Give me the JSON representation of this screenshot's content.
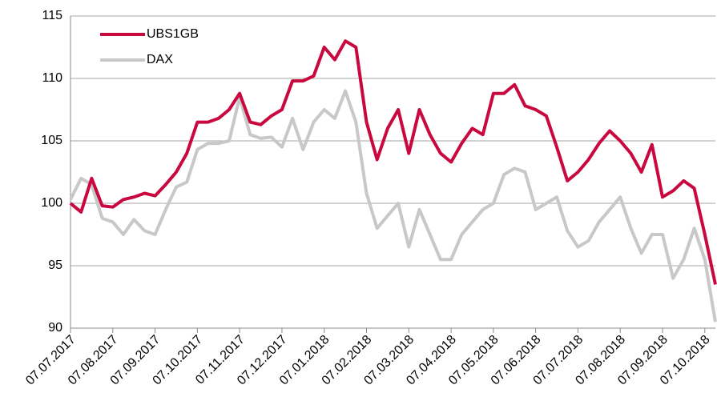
{
  "chart_data": {
    "type": "line",
    "categories": [
      "07.07.2017",
      null,
      null,
      null,
      "07.08.2017",
      null,
      null,
      null,
      "07.09.2017",
      null,
      null,
      null,
      "07.10.2017",
      null,
      null,
      null,
      "07.11.2017",
      null,
      null,
      null,
      "07.12.2017",
      null,
      null,
      null,
      "07.01.2018",
      null,
      null,
      null,
      "07.02.2018",
      null,
      null,
      null,
      "07.03.2018",
      null,
      null,
      null,
      "07.04.2018",
      null,
      null,
      null,
      "07.05.2018",
      null,
      null,
      null,
      "07.06.2018",
      null,
      null,
      null,
      "07.07.2018",
      null,
      null,
      null,
      "07.08.2018",
      null,
      null,
      null,
      "07.09.2018",
      null,
      null,
      null,
      "07.10.2018",
      null
    ],
    "series": [
      {
        "name": "UBS1GB",
        "color": "#c9083f",
        "values": [
          100,
          99.3,
          102,
          99.8,
          99.7,
          100.3,
          100.5,
          100.8,
          100.6,
          101.5,
          102.5,
          104,
          106.5,
          106.5,
          106.8,
          107.5,
          108.8,
          106.5,
          106.3,
          107,
          107.5,
          109.8,
          109.8,
          110.2,
          112.5,
          111.5,
          113,
          112.5,
          106.5,
          103.5,
          106,
          107.5,
          104,
          107.5,
          105.5,
          104,
          103.3,
          104.8,
          106,
          105.5,
          108.8,
          108.8,
          109.5,
          107.8,
          107.5,
          107,
          104.5,
          101.8,
          102.5,
          103.5,
          104.8,
          105.8,
          105,
          104,
          102.5,
          104.7,
          100.5,
          101,
          101.8,
          101.2,
          97.5,
          93.5
        ]
      },
      {
        "name": "DAX",
        "color": "#c8c8c8",
        "values": [
          100.3,
          102,
          101.5,
          98.8,
          98.5,
          97.5,
          98.7,
          97.8,
          97.5,
          99.5,
          101.3,
          101.7,
          104.3,
          104.8,
          104.8,
          105,
          108.5,
          105.5,
          105.2,
          105.3,
          104.5,
          106.8,
          104.3,
          106.5,
          107.5,
          106.8,
          109,
          106.5,
          100.8,
          98,
          99,
          100,
          96.5,
          99.5,
          97.5,
          95.5,
          95.5,
          97.5,
          98.5,
          99.5,
          100,
          102.3,
          102.8,
          102.5,
          99.5,
          100,
          100.5,
          97.8,
          96.5,
          97,
          98.5,
          99.5,
          100.5,
          98,
          96,
          97.5,
          97.5,
          94,
          95.5,
          98,
          95.5,
          90.5
        ]
      }
    ],
    "ylim": [
      90,
      115
    ],
    "yticks": [
      90,
      95,
      100,
      105,
      110,
      115
    ],
    "grid": true,
    "legend": "top-left"
  }
}
